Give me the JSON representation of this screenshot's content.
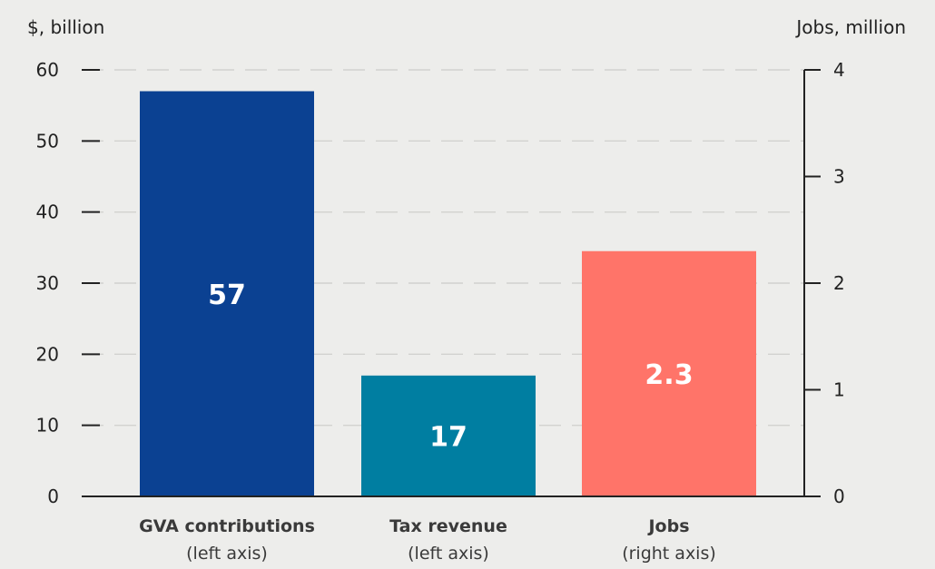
{
  "chart_data": {
    "type": "bar",
    "left_axis": {
      "label": "$, billion",
      "range": [
        0,
        60
      ],
      "ticks": [
        0,
        10,
        20,
        30,
        40,
        50,
        60
      ]
    },
    "right_axis": {
      "label": "Jobs, million",
      "range": [
        0,
        4
      ],
      "ticks": [
        0,
        1,
        2,
        3,
        4
      ]
    },
    "bars": [
      {
        "name": "GVA contributions",
        "axis_note": "(left axis)",
        "axis": "left",
        "value": 57,
        "label": "57",
        "color": "#0b4192"
      },
      {
        "name": "Tax revenue",
        "axis_note": "(left axis)",
        "axis": "left",
        "value": 17,
        "label": "17",
        "color": "#007ea1"
      },
      {
        "name": "Jobs",
        "axis_note": "(right axis)",
        "axis": "right",
        "value": 2.3,
        "label": "2.3",
        "color": "#ff7469"
      }
    ],
    "grid": true,
    "grid_style": "dashed"
  }
}
